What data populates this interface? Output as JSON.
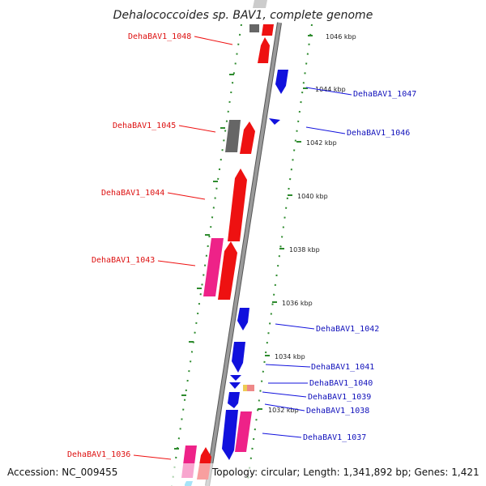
{
  "title": "Dehalococcoides sp. BAV1, complete genome",
  "footer": {
    "accession": "Accession: NC_009455",
    "topology": "Topology: circular; Length: 1,341,892 bp; Genes: 1,421"
  },
  "colors": {
    "reverse_strand": "#ee1111",
    "forward_strand": "#1111dd",
    "pseudo_magenta": "#ee2288",
    "grey_gene": "#666666",
    "backbone": "#999999",
    "tick_green": "#2e8b2e"
  },
  "tick_labels": [
    "1046 kbp",
    "1044 kbp",
    "1042 kbp",
    "1040 kbp",
    "1038 kbp",
    "1036 kbp",
    "1034 kbp",
    "1032 kbp"
  ],
  "left_labels": [
    "DehaBAV1_1048",
    "DehaBAV1_1045",
    "DehaBAV1_1044",
    "DehaBAV1_1043",
    "DehaBAV1_1036"
  ],
  "right_labels": [
    "DehaBAV1_1047",
    "DehaBAV1_1046",
    "DehaBAV1_1042",
    "DehaBAV1_1041",
    "DehaBAV1_1040",
    "DehaBAV1_1039",
    "DehaBAV1_1038",
    "DehaBAV1_1037"
  ]
}
